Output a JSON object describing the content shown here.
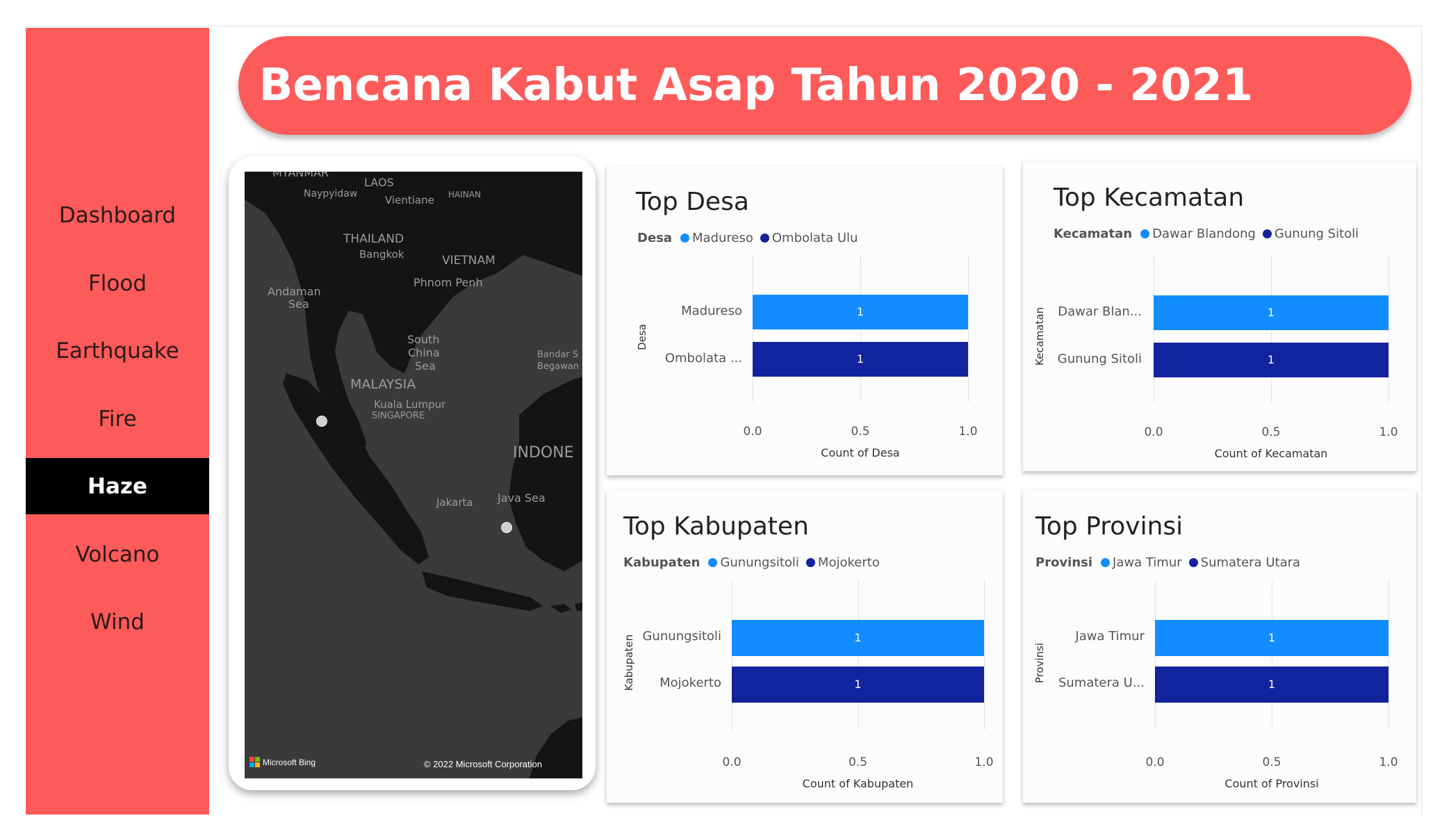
{
  "title": "Bencana Kabut Asap Tahun 2020 - 2021",
  "nav": {
    "items": [
      {
        "label": "Dashboard"
      },
      {
        "label": "Flood"
      },
      {
        "label": "Earthquake"
      },
      {
        "label": "Fire"
      },
      {
        "label": "Haze",
        "active": true
      },
      {
        "label": "Volcano"
      },
      {
        "label": "Wind"
      }
    ]
  },
  "map": {
    "labels": {
      "myanmar": "MYANMAR",
      "laos": "LAOS",
      "naypyidaw": "Naypyidaw",
      "vientiane": "Vientiane",
      "hainan": "HAINAN",
      "thailand": "THAILAND",
      "bangkok": "Bangkok",
      "vietnam": "VIETNAM",
      "andaman": "Andaman",
      "sea1": "Sea",
      "phnom_penh": "Phnom Penh",
      "south": "South",
      "china": "China",
      "sea2": "Sea",
      "bandar": "Bandar S",
      "begawan": "Begawan",
      "malaysia": "MALAYSIA",
      "kuala_lumpur": "Kuala Lumpur",
      "singapore": "SINGAPORE",
      "indonesia": "INDONE",
      "jakarta": "Jakarta",
      "java_sea": "Java Sea"
    },
    "attribution": "Microsoft Bing",
    "copyright": "© 2022 Microsoft Corporation"
  },
  "colors": {
    "accent": "#fd5a5a",
    "series1": "#118dff",
    "series2": "#12239e",
    "map_bg": "#3a3a3a",
    "land": "#141414"
  },
  "chart_data": [
    {
      "type": "bar",
      "title": "Top Desa",
      "legend_title": "Desa",
      "categories": [
        "Madureso",
        "Ombolata ..."
      ],
      "legend": [
        "Madureso",
        "Ombolata Ulu"
      ],
      "values": [
        1,
        1
      ],
      "value_labels": [
        "1",
        "1"
      ],
      "xlabel": "Count of Desa",
      "ylabel": "Desa",
      "xlim": [
        0,
        1
      ],
      "xticks": [
        "0.0",
        "0.5",
        "1.0"
      ],
      "orientation": "horizontal",
      "legend_position": "top-left"
    },
    {
      "type": "bar",
      "title": "Top Kecamatan",
      "legend_title": "Kecamatan",
      "categories": [
        "Dawar Blan...",
        "Gunung Sitoli"
      ],
      "legend": [
        "Dawar Blandong",
        "Gunung Sitoli"
      ],
      "values": [
        1,
        1
      ],
      "value_labels": [
        "1",
        "1"
      ],
      "xlabel": "Count of Kecamatan",
      "ylabel": "Kecamatan",
      "xlim": [
        0,
        1
      ],
      "xticks": [
        "0.0",
        "0.5",
        "1.0"
      ],
      "orientation": "horizontal",
      "legend_position": "top-left"
    },
    {
      "type": "bar",
      "title": "Top Kabupaten",
      "legend_title": "Kabupaten",
      "categories": [
        "Gunungsitoli",
        "Mojokerto"
      ],
      "legend": [
        "Gunungsitoli",
        "Mojokerto"
      ],
      "values": [
        1,
        1
      ],
      "value_labels": [
        "1",
        "1"
      ],
      "xlabel": "Count of Kabupaten",
      "ylabel": "Kabupaten",
      "xlim": [
        0,
        1
      ],
      "xticks": [
        "0.0",
        "0.5",
        "1.0"
      ],
      "orientation": "horizontal",
      "legend_position": "top-left"
    },
    {
      "type": "bar",
      "title": "Top Provinsi",
      "legend_title": "Provinsi",
      "categories": [
        "Jawa Timur",
        "Sumatera U..."
      ],
      "legend": [
        "Jawa Timur",
        "Sumatera Utara"
      ],
      "values": [
        1,
        1
      ],
      "value_labels": [
        "1",
        "1"
      ],
      "xlabel": "Count of Provinsi",
      "ylabel": "Provinsi",
      "xlim": [
        0,
        1
      ],
      "xticks": [
        "0.0",
        "0.5",
        "1.0"
      ],
      "orientation": "horizontal",
      "legend_position": "top-left"
    }
  ]
}
